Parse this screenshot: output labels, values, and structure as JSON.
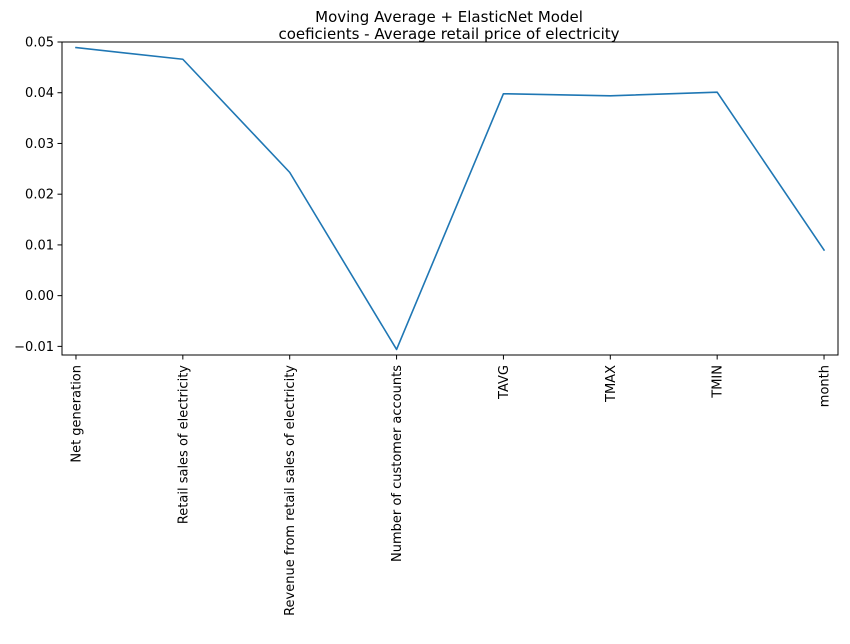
{
  "chart_data": {
    "type": "line",
    "title_lines": [
      "Moving Average + ElasticNet Model",
      "coeficients - Average retail price of electricity"
    ],
    "xlabel": "",
    "ylabel": "",
    "categories": [
      "Net generation",
      "Retail sales of electricity",
      "Revenue from retail sales of electricity",
      "Number of customer accounts",
      "TAVG",
      "TMAX",
      "TMIN",
      "month"
    ],
    "series": [
      {
        "values": [
          0.0489,
          0.0466,
          0.0243,
          -0.0106,
          0.0398,
          0.0394,
          0.0401,
          0.009
        ],
        "color": "#1f77b4"
      }
    ],
    "ylim": [
      -0.0117,
      0.05
    ],
    "yticks": [
      -0.01,
      0.0,
      0.01,
      0.02,
      0.03,
      0.04,
      0.05
    ],
    "ytick_labels": [
      "−0.01",
      "0.00",
      "0.01",
      "0.02",
      "0.03",
      "0.04",
      "0.05"
    ],
    "grid": false,
    "legend": "none"
  }
}
